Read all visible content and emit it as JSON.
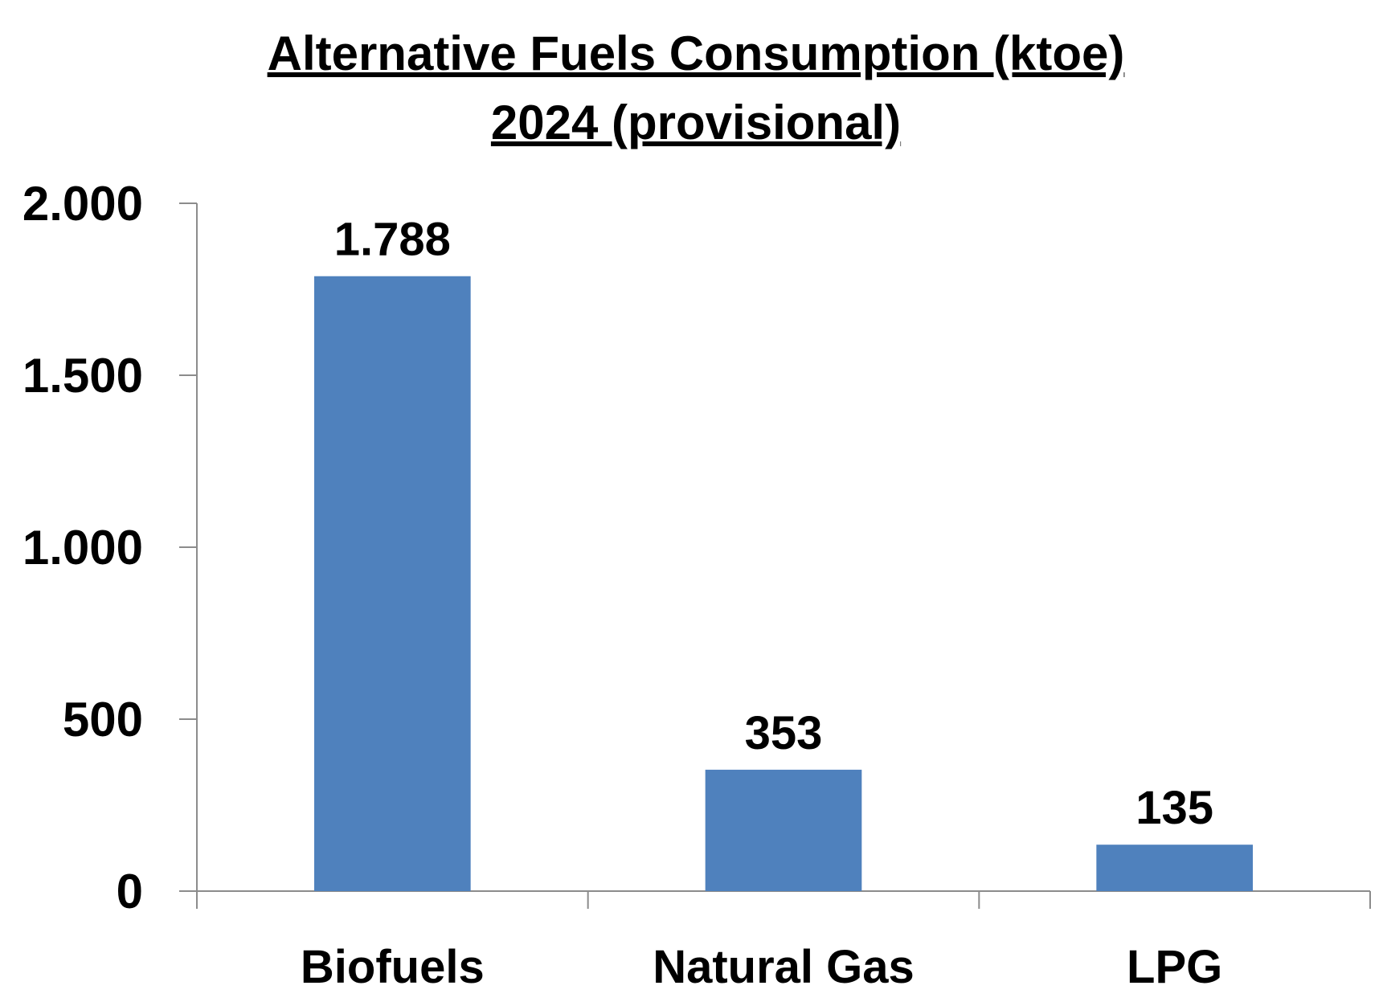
{
  "chart_data": {
    "type": "bar",
    "title_lines": [
      "Alternative Fuels Consumption (ktoe)",
      "2024 (provisional)"
    ],
    "categories": [
      "Biofuels",
      "Natural Gas",
      "LPG"
    ],
    "values": [
      1788,
      353,
      135
    ],
    "data_labels": [
      "1.788",
      "353",
      "135"
    ],
    "yticks": [
      0,
      500,
      1000,
      1500,
      2000
    ],
    "ytick_labels": [
      "0",
      "500",
      "1.000",
      "1.500",
      "2.000"
    ],
    "ylim": [
      0,
      2000
    ],
    "xlabel": "",
    "ylabel": "",
    "grid": false,
    "legend": "none",
    "bar_color": "#4f81bd",
    "axis_color": "#8c8c8c"
  }
}
